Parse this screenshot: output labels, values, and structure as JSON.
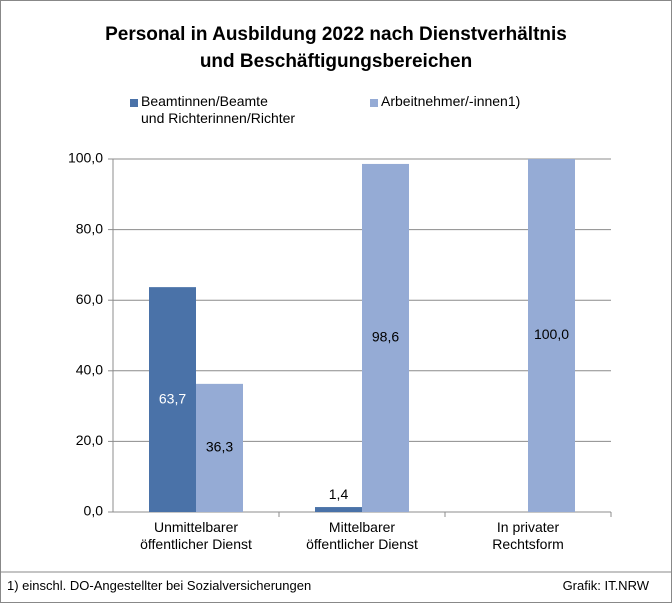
{
  "chart_data": {
    "type": "bar",
    "title": "Personal in Ausbildung 2022 nach Dienstverhältnis\nund Beschäftigungsbereichen",
    "categories": [
      "Unmittelbarer\nöffentlicher Dienst",
      "Mittelbarer\nöffentlicher Dienst",
      "In privater\nRechtsform"
    ],
    "series": [
      {
        "name": "Beamtinnen/Beamte\nund Richterinnen/Richter",
        "color": "#4a72a8",
        "values": [
          63.7,
          1.4,
          null
        ],
        "value_labels": [
          "63,7",
          "1,4",
          null
        ]
      },
      {
        "name": "Arbeitnehmer/-innen1)",
        "color": "#95abd5",
        "values": [
          36.3,
          98.6,
          100.0
        ],
        "value_labels": [
          "36,3",
          "98,6",
          "100,0"
        ]
      }
    ],
    "ylim": [
      0,
      100
    ],
    "yticks": [
      {
        "value": 0,
        "label": "0,0"
      },
      {
        "value": 20,
        "label": "20,0"
      },
      {
        "value": 40,
        "label": "40,0"
      },
      {
        "value": 60,
        "label": "60,0"
      },
      {
        "value": 80,
        "label": "80,0"
      },
      {
        "value": 100,
        "label": "100,0"
      }
    ],
    "grid": true,
    "footnote": "1) einschl. DO-Angestellter bei Sozialversicherungen",
    "source": "Grafik: IT.NRW"
  }
}
